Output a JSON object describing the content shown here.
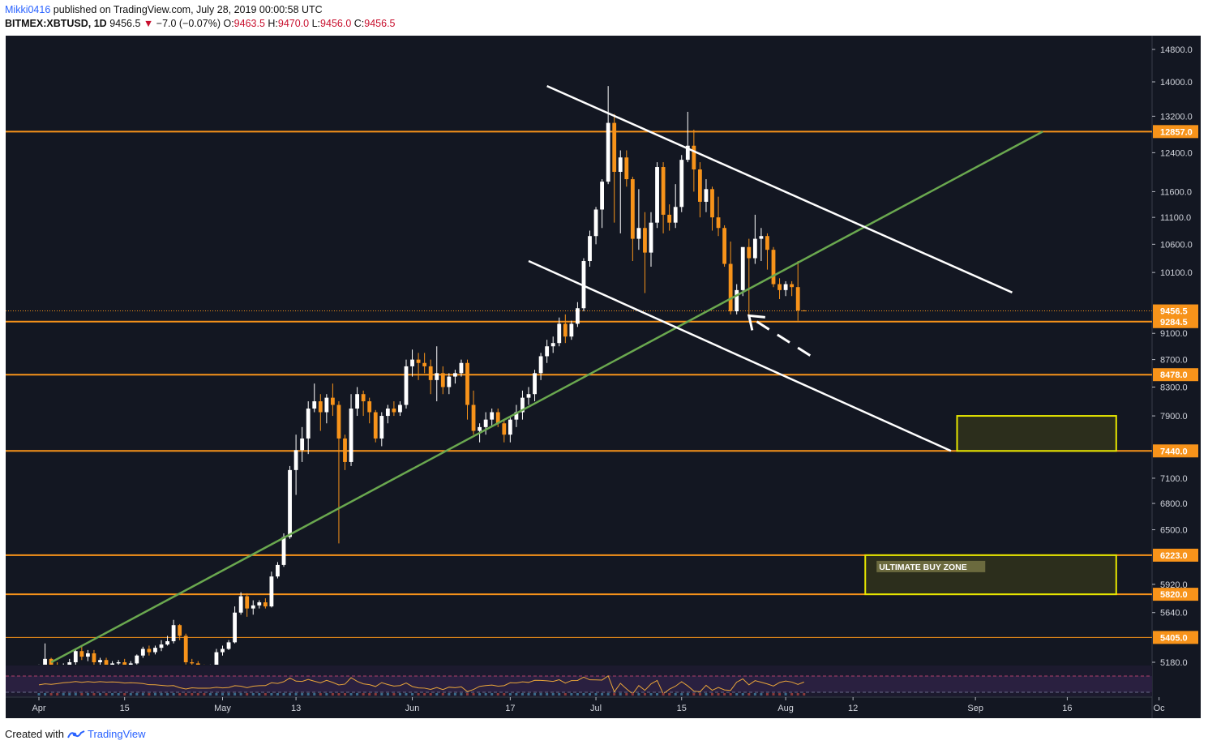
{
  "header": {
    "user": "Mikki0416",
    "published": "published on TradingView.com, July 28, 2019 00:00:58 UTC",
    "symbol": "BITMEX:XBTUSD, 1D",
    "price": "9456.5",
    "change_arrow": "▼",
    "change": "−7.0 (−0.07%)",
    "o_label": "O:",
    "o_value": "9463.5",
    "h_label": "H:",
    "h_value": "9470.0",
    "l_label": "L:",
    "l_value": "9456.0",
    "c_label": "C:",
    "c_value": "9456.5"
  },
  "footer": {
    "created_with": "Created with",
    "brand": "TradingView"
  },
  "colors": {
    "background": "#131722",
    "bull": "#ffffff",
    "bear": "#f7931a",
    "level": "#f7931a",
    "trend": "#6aa84f",
    "channel": "#ffffff",
    "zone_border": "#e6e600",
    "zone_fill": "#2c2e1c"
  },
  "chart_data": {
    "type": "candlestick",
    "title": "BITMEX:XBTUSD, 1D",
    "symbol": "XBTUSD",
    "timeframe": "1D",
    "xlabel": "",
    "ylabel": "",
    "ylim": [
      5050,
      15100
    ],
    "x_ticks": [
      {
        "label": "Apr",
        "day": 0
      },
      {
        "label": "15",
        "day": 14
      },
      {
        "label": "May",
        "day": 30
      },
      {
        "label": "13",
        "day": 42
      },
      {
        "label": "Jun",
        "day": 61
      },
      {
        "label": "17",
        "day": 77
      },
      {
        "label": "Jul",
        "day": 91
      },
      {
        "label": "15",
        "day": 105
      },
      {
        "label": "Aug",
        "day": 122
      },
      {
        "label": "12",
        "day": 133
      },
      {
        "label": "Sep",
        "day": 153
      },
      {
        "label": "16",
        "day": 168
      },
      {
        "label": "Oc",
        "day": 183
      }
    ],
    "y_ticks": [
      14800,
      14000,
      13200,
      12400,
      11600,
      11100,
      10600,
      10100,
      9100,
      8700,
      8300,
      7900,
      7100,
      6800,
      6500,
      5920,
      5640,
      5180
    ],
    "y_tick_labels": [
      "14800.0",
      "14000.0",
      "13200.0",
      "12400.0",
      "11600.0",
      "11100.0",
      "10600.0",
      "10100.0",
      "9100.0",
      "8700.0",
      "8300.0",
      "7900.0",
      "7100.0",
      "6800.0",
      "6500.0",
      "5920.0",
      "5640.0",
      "5180.0"
    ],
    "levels": [
      {
        "price": 12857,
        "label": "12857.0"
      },
      {
        "price": 9284.5,
        "label": "9284.5"
      },
      {
        "price": 8478,
        "label": "8478.0"
      },
      {
        "price": 7440,
        "label": "7440.0"
      },
      {
        "price": 6223,
        "label": "6223.0"
      },
      {
        "price": 5820,
        "label": "5820.0"
      },
      {
        "price": 5405,
        "label": "5405.0"
      }
    ],
    "last_price": {
      "price": 9456.5,
      "label": "9456.5"
    },
    "trend_line": {
      "from": {
        "day": 2,
        "price": 5180
      },
      "to": {
        "day": 164,
        "price": 12857
      }
    },
    "channel_upper": {
      "from": {
        "day": 83,
        "price": 13900
      },
      "to": {
        "day": 159,
        "price": 9760
      }
    },
    "channel_lower": {
      "from": {
        "day": 80,
        "price": 10300
      },
      "to": {
        "day": 149,
        "price": 7440
      }
    },
    "zones": [
      {
        "name": "resistance-zone",
        "from_day": 150,
        "to_day": 176,
        "low": 7440,
        "high": 7900,
        "label": ""
      },
      {
        "name": "ultimate-buy-zone",
        "from_day": 135,
        "to_day": 176,
        "low": 5820,
        "high": 6223,
        "label": "ULTIMATE BUY ZONE"
      }
    ],
    "arrow": {
      "from": {
        "day": 126,
        "price": 8760
      },
      "to": {
        "day": 116,
        "price": 9380
      }
    },
    "candles_ohlc": [
      [
        5100,
        5160,
        5090,
        5120
      ],
      [
        5120,
        5350,
        5110,
        5210
      ],
      [
        5210,
        5220,
        5100,
        5150
      ],
      [
        5150,
        5180,
        5060,
        5110
      ],
      [
        5110,
        5170,
        5080,
        5140
      ],
      [
        5140,
        5210,
        5120,
        5180
      ],
      [
        5180,
        5300,
        5150,
        5280
      ],
      [
        5280,
        5330,
        5200,
        5230
      ],
      [
        5230,
        5290,
        5190,
        5260
      ],
      [
        5260,
        5290,
        5150,
        5180
      ],
      [
        5180,
        5220,
        5140,
        5200
      ],
      [
        5200,
        5220,
        5120,
        5150
      ],
      [
        5150,
        5190,
        5110,
        5170
      ],
      [
        5170,
        5200,
        5120,
        5180
      ],
      [
        5180,
        5210,
        5110,
        5120
      ],
      [
        5120,
        5190,
        5100,
        5170
      ],
      [
        5170,
        5250,
        5160,
        5240
      ],
      [
        5240,
        5320,
        5220,
        5300
      ],
      [
        5300,
        5330,
        5240,
        5270
      ],
      [
        5270,
        5330,
        5250,
        5310
      ],
      [
        5310,
        5380,
        5280,
        5340
      ],
      [
        5340,
        5420,
        5330,
        5370
      ],
      [
        5370,
        5570,
        5350,
        5520
      ],
      [
        5520,
        5530,
        5380,
        5420
      ],
      [
        5420,
        5440,
        5160,
        5180
      ],
      [
        5180,
        5210,
        5130,
        5170
      ],
      [
        5170,
        5190,
        5100,
        5140
      ],
      [
        5140,
        5160,
        5100,
        5130
      ],
      [
        5130,
        5160,
        5080,
        5140
      ],
      [
        5140,
        5300,
        5120,
        5270
      ],
      [
        5270,
        5330,
        5240,
        5300
      ],
      [
        5300,
        5380,
        5290,
        5360
      ],
      [
        5360,
        5700,
        5350,
        5640
      ],
      [
        5640,
        5840,
        5620,
        5800
      ],
      [
        5800,
        5830,
        5600,
        5680
      ],
      [
        5680,
        5760,
        5620,
        5710
      ],
      [
        5710,
        5760,
        5680,
        5740
      ],
      [
        5740,
        5780,
        5680,
        5700
      ],
      [
        5700,
        6050,
        5690,
        6000
      ],
      [
        6000,
        6150,
        5980,
        6120
      ],
      [
        6120,
        6460,
        6100,
        6420
      ],
      [
        6420,
        7250,
        6400,
        7200
      ],
      [
        7200,
        7650,
        6900,
        7450
      ],
      [
        7450,
        7750,
        7300,
        7600
      ],
      [
        7600,
        8100,
        7400,
        8000
      ],
      [
        8000,
        8350,
        7950,
        8100
      ],
      [
        8100,
        8200,
        7700,
        7950
      ],
      [
        7950,
        8200,
        7800,
        8150
      ],
      [
        8150,
        8350,
        7900,
        8050
      ],
      [
        8050,
        8100,
        6350,
        7600
      ],
      [
        7600,
        7650,
        7200,
        7300
      ],
      [
        7300,
        8200,
        7250,
        8000
      ],
      [
        8000,
        8300,
        7900,
        8200
      ],
      [
        8200,
        8250,
        7900,
        8100
      ],
      [
        8100,
        8150,
        7800,
        7950
      ],
      [
        7950,
        7980,
        7550,
        7600
      ],
      [
        7600,
        7950,
        7500,
        7900
      ],
      [
        7900,
        8050,
        7800,
        8000
      ],
      [
        8000,
        8100,
        7900,
        7950
      ],
      [
        7950,
        8100,
        7900,
        8050
      ],
      [
        8050,
        8700,
        8000,
        8600
      ],
      [
        8600,
        8850,
        8450,
        8700
      ],
      [
        8700,
        8800,
        8400,
        8650
      ],
      [
        8650,
        8800,
        8500,
        8600
      ],
      [
        8600,
        8700,
        8200,
        8400
      ],
      [
        8400,
        8900,
        8100,
        8500
      ],
      [
        8500,
        8600,
        8200,
        8300
      ],
      [
        8300,
        8500,
        8200,
        8450
      ],
      [
        8450,
        8550,
        8350,
        8500
      ],
      [
        8500,
        8700,
        8450,
        8650
      ],
      [
        8650,
        8700,
        7850,
        8050
      ],
      [
        8050,
        8250,
        7650,
        7700
      ],
      [
        7700,
        7800,
        7550,
        7750
      ],
      [
        7750,
        7950,
        7650,
        7850
      ],
      [
        7850,
        8000,
        7750,
        7950
      ],
      [
        7950,
        8000,
        7750,
        7800
      ],
      [
        7800,
        7850,
        7550,
        7650
      ],
      [
        7650,
        7900,
        7550,
        7850
      ],
      [
        7850,
        8050,
        7750,
        7950
      ],
      [
        7950,
        8250,
        7850,
        8150
      ],
      [
        8150,
        8300,
        8050,
        8200
      ],
      [
        8200,
        8550,
        8100,
        8500
      ],
      [
        8500,
        8800,
        8400,
        8750
      ],
      [
        8750,
        9000,
        8650,
        8900
      ],
      [
        8900,
        9050,
        8800,
        8950
      ],
      [
        8950,
        9350,
        8900,
        9250
      ],
      [
        9250,
        9400,
        8950,
        9050
      ],
      [
        9050,
        9300,
        9000,
        9250
      ],
      [
        9250,
        9600,
        9200,
        9500
      ],
      [
        9500,
        10350,
        9450,
        10300
      ],
      [
        10300,
        10850,
        10200,
        10750
      ],
      [
        10750,
        11300,
        10600,
        11250
      ],
      [
        11250,
        11850,
        10900,
        11800
      ],
      [
        11800,
        13900,
        11750,
        13050
      ],
      [
        13050,
        13250,
        11000,
        12000
      ],
      [
        12000,
        12450,
        10800,
        12300
      ],
      [
        12300,
        12450,
        11700,
        11850
      ],
      [
        11850,
        11900,
        10300,
        10700
      ],
      [
        10700,
        11650,
        10500,
        10900
      ],
      [
        10900,
        11200,
        9750,
        10450
      ],
      [
        10450,
        11200,
        10200,
        11000
      ],
      [
        11000,
        12200,
        10900,
        12100
      ],
      [
        12100,
        12200,
        10800,
        11150
      ],
      [
        11150,
        11350,
        10850,
        11000
      ],
      [
        11000,
        11750,
        10900,
        11300
      ],
      [
        11300,
        12350,
        11200,
        12250
      ],
      [
        12250,
        13300,
        12200,
        12550
      ],
      [
        12550,
        12900,
        11600,
        12050
      ],
      [
        12050,
        12200,
        11100,
        11400
      ],
      [
        11400,
        11850,
        11200,
        11650
      ],
      [
        11650,
        11700,
        10850,
        11100
      ],
      [
        11100,
        11500,
        10750,
        10900
      ],
      [
        10900,
        10950,
        10200,
        10250
      ],
      [
        10250,
        10650,
        9400,
        9450
      ],
      [
        9450,
        9900,
        9400,
        9800
      ],
      [
        9800,
        10250,
        9700,
        10550
      ],
      [
        10550,
        10700,
        9350,
        10350
      ],
      [
        10350,
        11150,
        10250,
        10700
      ],
      [
        10700,
        10900,
        10300,
        10750
      ],
      [
        10750,
        10800,
        10150,
        10500
      ],
      [
        10500,
        10550,
        9850,
        9900
      ],
      [
        9900,
        10000,
        9650,
        9800
      ],
      [
        9800,
        9950,
        9700,
        9900
      ],
      [
        9900,
        9950,
        9700,
        9850
      ],
      [
        9850,
        10300,
        9300,
        9463.5
      ],
      [
        9463.5,
        9470,
        9456,
        9456.5
      ]
    ]
  }
}
